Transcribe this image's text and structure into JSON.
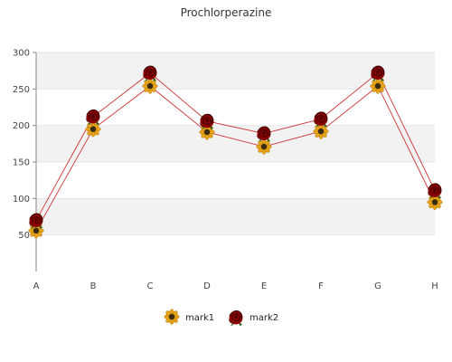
{
  "chart_data": {
    "type": "line",
    "title": "Prochlorperazine",
    "xlabel": "",
    "ylabel": "",
    "categories": [
      "A",
      "B",
      "C",
      "D",
      "E",
      "F",
      "G",
      "H"
    ],
    "ylim": [
      0,
      300
    ],
    "yticks": [
      50,
      100,
      150,
      200,
      250,
      300
    ],
    "grid": true,
    "legend_position": "bottom",
    "series": [
      {
        "name": "mark1",
        "marker": "sunflower-icon",
        "color": "#cc3333",
        "values": [
          56,
          195,
          254,
          191,
          171,
          192,
          254,
          95
        ]
      },
      {
        "name": "mark2",
        "marker": "rose-icon",
        "color": "#cc3333",
        "values": [
          70,
          212,
          272,
          206,
          189,
          209,
          272,
          111
        ]
      }
    ],
    "colors": {
      "line": "#cc3333",
      "band": "#f2f2f2",
      "axis": "#888888",
      "grid": "#dddddd",
      "sunflower_petal": "#e8a317",
      "sunflower_center": "#3a2a10",
      "rose": "#8b0000"
    }
  }
}
